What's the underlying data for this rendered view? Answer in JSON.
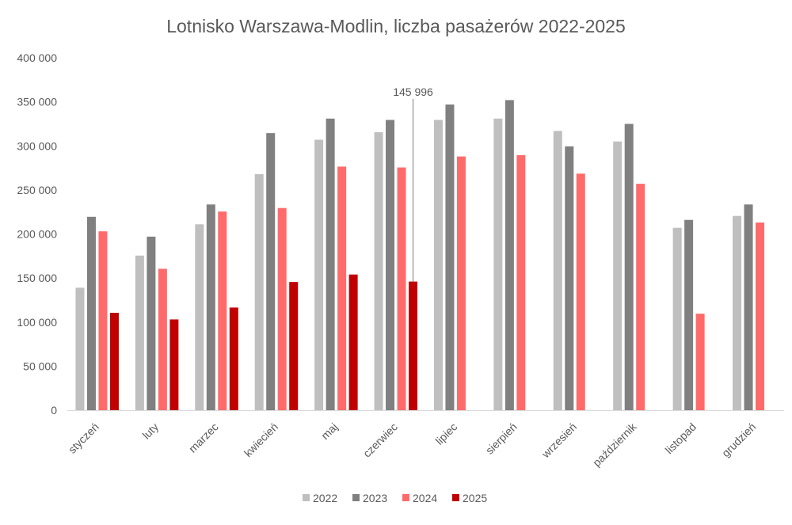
{
  "chart_data": {
    "type": "bar",
    "title": "Lotnisko Warszawa-Modlin, liczba pasażerów 2022-2025",
    "xlabel": "",
    "ylabel": "",
    "ylim": [
      0,
      400000
    ],
    "yticks": [
      0,
      50000,
      100000,
      150000,
      200000,
      250000,
      300000,
      350000,
      400000
    ],
    "ytick_labels": [
      "0",
      "50 000",
      "100 000",
      "150 000",
      "200 000",
      "250 000",
      "300 000",
      "350 000",
      "400 000"
    ],
    "grid": false,
    "legend_position": "bottom",
    "categories": [
      "styczeń",
      "luty",
      "marzec",
      "kwiecień",
      "maj",
      "czerwiec",
      "lipiec",
      "sierpień",
      "wrzesień",
      "październik",
      "listopad",
      "grudzień"
    ],
    "series": [
      {
        "name": "2022",
        "color": "#bfbfbf",
        "values": [
          139000,
          175500,
          211000,
          268000,
          307000,
          315500,
          329500,
          331000,
          317000,
          305000,
          207000,
          220500
        ]
      },
      {
        "name": "2023",
        "color": "#808080",
        "values": [
          219500,
          197000,
          233500,
          314500,
          331000,
          329500,
          347000,
          352000,
          299500,
          325000,
          216000,
          233500
        ]
      },
      {
        "name": "2024",
        "color": "#ff6b6b",
        "values": [
          203000,
          160500,
          225500,
          229500,
          276500,
          275500,
          288000,
          289500,
          268500,
          257000,
          109500,
          213000
        ]
      },
      {
        "name": "2025",
        "color": "#c00000",
        "values": [
          110500,
          103000,
          116500,
          145500,
          154000,
          145996,
          null,
          null,
          null,
          null,
          null,
          null
        ]
      }
    ],
    "annotations": [
      {
        "text": "145 996",
        "category": "czerwiec",
        "series": "2025",
        "value": 145996
      }
    ]
  }
}
